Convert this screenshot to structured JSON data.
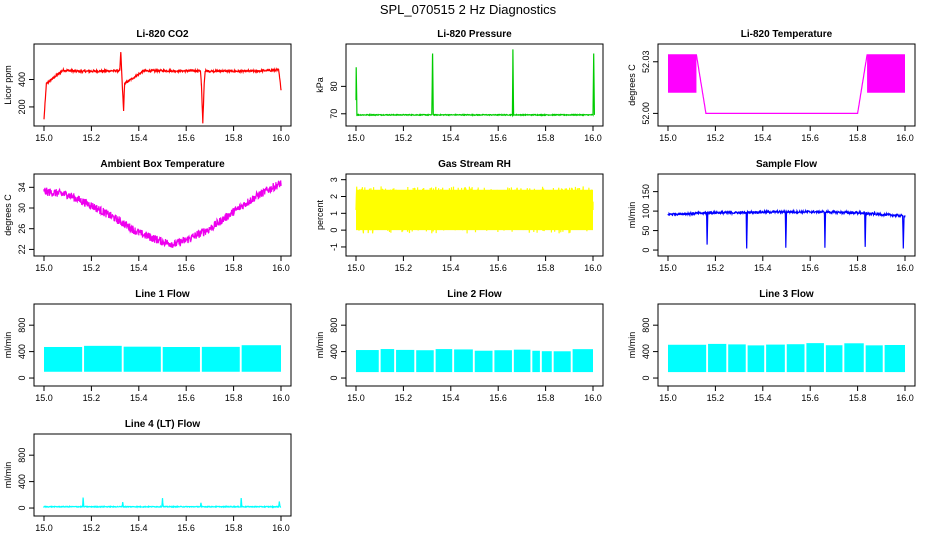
{
  "figure": {
    "title": "SPL_070515  2 Hz Diagnostics"
  },
  "chart_data": [
    {
      "id": "co2",
      "type": "line",
      "title": "Li-820 CO2",
      "ylabel": "Licor ppm",
      "color": "#ff0000",
      "xlim": [
        14.97,
        16.02
      ],
      "ylim": [
        90,
        630
      ],
      "xticks": [
        15.0,
        15.2,
        15.4,
        15.6,
        15.8,
        16.0
      ],
      "yticks": [
        200,
        400
      ],
      "yticklabels": [
        "200",
        "400"
      ],
      "series": [
        {
          "name": "CO2",
          "baseline": 370,
          "noise": 8,
          "x": [
            15.0,
            15.01,
            15.08,
            15.15,
            15.25,
            15.32,
            15.324,
            15.33,
            15.336,
            15.34,
            15.42,
            15.5,
            15.58,
            15.66,
            15.664,
            15.67,
            15.676,
            15.68,
            15.75,
            15.83,
            15.9,
            15.99,
            16.0
          ],
          "y": [
            110,
            370,
            468,
            460,
            462,
            465,
            600,
            370,
            170,
            370,
            462,
            465,
            462,
            465,
            370,
            80,
            370,
            462,
            462,
            460,
            462,
            470,
            330
          ]
        }
      ]
    },
    {
      "id": "pressure",
      "type": "line",
      "title": "Li-820 Pressure",
      "ylabel": "kPa",
      "color": "#00cc00",
      "xlim": [
        14.97,
        16.02
      ],
      "ylim": [
        67,
        94
      ],
      "xticks": [
        15.0,
        15.2,
        15.4,
        15.6,
        15.8,
        16.0
      ],
      "yticks": [
        70,
        80
      ],
      "yticklabels": [
        "70",
        "80"
      ],
      "series": [
        {
          "name": "Pressure",
          "baseline": 69.6,
          "noise": 0.15,
          "x": [
            15.0,
            15.001,
            15.004,
            15.006,
            15.32,
            15.323,
            15.326,
            15.66,
            15.662,
            15.665,
            16.0,
            16.003,
            16.006
          ],
          "y": [
            75,
            87,
            69.6,
            69.6,
            69.6,
            92,
            69.6,
            69.6,
            93.5,
            69.6,
            69.6,
            92,
            69.6
          ]
        }
      ]
    },
    {
      "id": "licor-temp",
      "type": "line",
      "title": "Li-820 Temperature",
      "ylabel": "degrees C",
      "color": "#ff00ff",
      "xlim": [
        14.97,
        16.02
      ],
      "ylim": [
        51.995,
        52.038
      ],
      "xticks": [
        15.0,
        15.2,
        15.4,
        15.6,
        15.8,
        16.0
      ],
      "yticks": [
        52.0,
        52.03
      ],
      "yticklabels": [
        "52.00",
        "52.03"
      ],
      "series": [
        {
          "name": "Temperature",
          "noise": 0,
          "x": [
            15.0,
            15.12,
            15.16,
            15.8,
            15.84,
            15.93,
            16.0
          ],
          "y": [
            52.034,
            52.034,
            52.0,
            52.0,
            52.034,
            52.034,
            52.034
          ]
        }
      ]
    },
    {
      "id": "ambient-box-temp",
      "type": "line",
      "title": "Ambient Box Temperature",
      "ylabel": "degrees C",
      "color": "#ee00ee",
      "xlim": [
        14.97,
        16.02
      ],
      "ylim": [
        21.5,
        35.8
      ],
      "xticks": [
        15.0,
        15.2,
        15.4,
        15.6,
        15.8,
        16.0
      ],
      "yticks": [
        22,
        26,
        30,
        34
      ],
      "yticklabels": [
        "22",
        "26",
        "30",
        "34"
      ],
      "series": [
        {
          "name": "Temperature",
          "noise": 0.8,
          "x": [
            15.0,
            15.1,
            15.2,
            15.3,
            15.4,
            15.5,
            15.55,
            15.6,
            15.7,
            15.8,
            15.9,
            16.0
          ],
          "y": [
            33.2,
            32.6,
            30.5,
            28.0,
            25.2,
            23.5,
            23.0,
            23.8,
            26.0,
            29.3,
            32.4,
            34.8
          ]
        }
      ]
    },
    {
      "id": "gas-stream-rh",
      "type": "line",
      "title": "Gas Stream RH",
      "ylabel": "percent",
      "color": "#ffff00",
      "xlim": [
        14.97,
        16.02
      ],
      "ylim": [
        -1.3,
        3.1
      ],
      "xticks": [
        15.0,
        15.2,
        15.4,
        15.6,
        15.8,
        16.0
      ],
      "yticks": [
        -1,
        0,
        1,
        2,
        3
      ],
      "yticklabels": [
        "-1",
        "0",
        "1",
        "2",
        "3"
      ],
      "series": [
        {
          "name": "RH",
          "baseline": 1.2,
          "noise": 1.4,
          "x": [
            15.0,
            16.0
          ],
          "y": [
            1.2,
            1.2
          ]
        }
      ]
    },
    {
      "id": "sample-flow",
      "type": "line",
      "title": "Sample Flow",
      "ylabel": "ml/min",
      "color": "#0000ff",
      "xlim": [
        14.97,
        16.02
      ],
      "ylim": [
        -5,
        185
      ],
      "xticks": [
        15.0,
        15.2,
        15.4,
        15.6,
        15.8,
        16.0
      ],
      "yticks": [
        0,
        50,
        100,
        150
      ],
      "yticklabels": [
        "0",
        "50",
        "100",
        "150"
      ],
      "series": [
        {
          "name": "Flow",
          "noise": 3,
          "x": [
            15.0,
            15.163,
            15.165,
            15.168,
            15.33,
            15.332,
            15.335,
            15.495,
            15.497,
            15.5,
            15.66,
            15.662,
            15.665,
            15.83,
            15.832,
            15.835,
            15.99,
            15.993,
            15.996
          ],
          "y": [
            92,
            95,
            14,
            96,
            96,
            4,
            97,
            98,
            6,
            98,
            98,
            6,
            98,
            95,
            8,
            94,
            88,
            4,
            88
          ]
        }
      ]
    },
    {
      "id": "line1-flow",
      "type": "line",
      "title": "Line 1 Flow",
      "ylabel": "ml/min",
      "color": "#00ffff",
      "xlim": [
        14.97,
        16.02
      ],
      "ylim": [
        -60,
        1060
      ],
      "xticks": [
        15.0,
        15.2,
        15.4,
        15.6,
        15.8,
        16.0
      ],
      "yticks": [
        0,
        400,
        800
      ],
      "yticklabels": [
        "0",
        "400",
        "800"
      ],
      "series": [
        {
          "name": "Flow",
          "low": 95,
          "high": 480,
          "x": [
            15.0,
            16.0
          ],
          "y": [
            480,
            480
          ],
          "gaps": [
            15.165,
            15.332,
            15.497,
            15.662,
            15.83
          ]
        }
      ]
    },
    {
      "id": "line2-flow",
      "type": "line",
      "title": "Line 2 Flow",
      "ylabel": "ml/min",
      "color": "#00ffff",
      "xlim": [
        14.97,
        16.02
      ],
      "ylim": [
        -60,
        1060
      ],
      "xticks": [
        15.0,
        15.2,
        15.4,
        15.6,
        15.8,
        16.0
      ],
      "yticks": [
        0,
        400,
        800
      ],
      "yticklabels": [
        "0",
        "400",
        "800"
      ],
      "series": [
        {
          "name": "Flow",
          "low": 90,
          "high": 420,
          "x": [
            15.0,
            16.0
          ],
          "y": [
            420,
            420
          ],
          "gaps": [
            15.1,
            15.165,
            15.25,
            15.332,
            15.41,
            15.497,
            15.58,
            15.662,
            15.74,
            15.78,
            15.83,
            15.91
          ]
        }
      ]
    },
    {
      "id": "line3-flow",
      "type": "line",
      "title": "Line 3 Flow",
      "ylabel": "ml/min",
      "color": "#00ffff",
      "xlim": [
        14.97,
        16.02
      ],
      "ylim": [
        -60,
        1060
      ],
      "xticks": [
        15.0,
        15.2,
        15.4,
        15.6,
        15.8,
        16.0
      ],
      "yticks": [
        0,
        400,
        800
      ],
      "yticklabels": [
        "0",
        "400",
        "800"
      ],
      "series": [
        {
          "name": "Flow",
          "low": 90,
          "high": 510,
          "x": [
            15.0,
            16.0
          ],
          "y": [
            510,
            510
          ],
          "gaps": [
            15.165,
            15.25,
            15.332,
            15.41,
            15.497,
            15.58,
            15.662,
            15.74,
            15.83,
            15.91
          ]
        }
      ]
    },
    {
      "id": "line4-flow",
      "type": "line",
      "title": "Line 4 (LT) Flow",
      "ylabel": "ml/min",
      "color": "#00ffff",
      "xlim": [
        14.97,
        16.02
      ],
      "ylim": [
        -60,
        1060
      ],
      "xticks": [
        15.0,
        15.2,
        15.4,
        15.6,
        15.8,
        16.0
      ],
      "yticks": [
        0,
        400,
        800
      ],
      "yticklabels": [
        "0",
        "400",
        "800"
      ],
      "series": [
        {
          "name": "Flow",
          "noise": 6,
          "x": [
            15.0,
            15.163,
            15.165,
            15.168,
            15.33,
            15.332,
            15.335,
            15.497,
            15.5,
            15.503,
            15.66,
            15.662,
            15.665,
            15.83,
            15.832,
            15.835,
            15.99,
            15.993,
            15.996
          ],
          "y": [
            20,
            20,
            160,
            20,
            20,
            90,
            20,
            20,
            150,
            20,
            20,
            80,
            20,
            20,
            150,
            20,
            20,
            100,
            20
          ]
        }
      ]
    }
  ]
}
